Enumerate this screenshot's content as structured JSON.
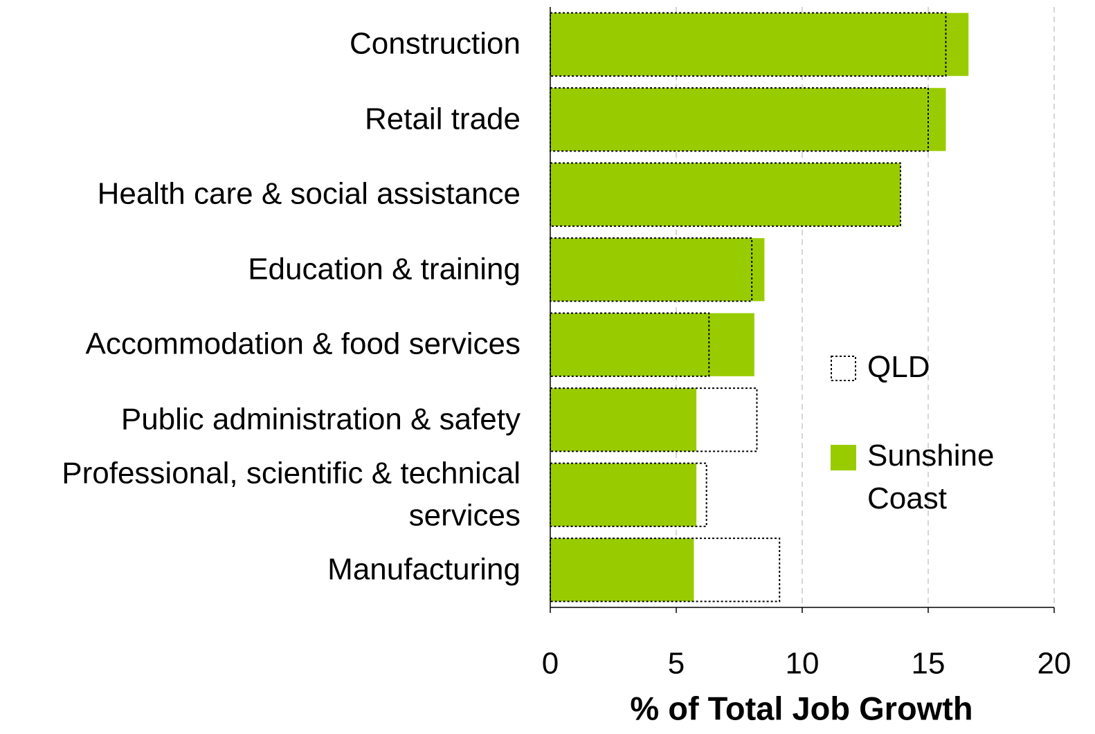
{
  "chart_data": {
    "type": "bar",
    "orientation": "horizontal",
    "categories": [
      "Construction",
      "Retail trade",
      "Health care & social assistance",
      "Education & training",
      "Accommodation & food services",
      "Public administration & safety",
      "Professional, scientific & technical services",
      "Manufacturing"
    ],
    "series": [
      {
        "name": "Sunshine Coast",
        "color": "#99cc00",
        "outline": false,
        "values": [
          16.6,
          15.7,
          13.9,
          8.5,
          8.1,
          5.8,
          5.8,
          5.7
        ]
      },
      {
        "name": "QLD",
        "color": "#000000",
        "outline": true,
        "values": [
          15.7,
          15.0,
          13.9,
          8.0,
          6.3,
          8.2,
          6.2,
          9.1
        ]
      }
    ],
    "xlabel": "% of Total Job Growth",
    "xlim": [
      0,
      20
    ],
    "xticks": [
      0,
      5,
      10,
      15,
      20
    ],
    "grid": true
  }
}
